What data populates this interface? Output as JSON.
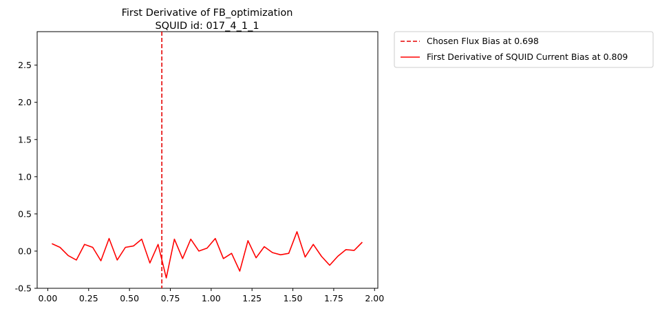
{
  "chart_data": {
    "type": "line",
    "title": "First Derivative of FB_optimization",
    "subtitle": "SQUID id: 017_4_1_1",
    "xlabel": "",
    "ylabel": "",
    "xlim": [
      -0.065,
      2.02
    ],
    "ylim": [
      -0.5,
      2.95
    ],
    "x_ticks": [
      "0.00",
      "0.25",
      "0.50",
      "0.75",
      "1.00",
      "1.25",
      "1.50",
      "1.75",
      "2.00"
    ],
    "y_ticks": [
      "-0.5",
      "0.0",
      "0.5",
      "1.0",
      "1.5",
      "2.0",
      "2.5"
    ],
    "grid": false,
    "legend_placement": "outside-top-right",
    "vline": {
      "name": "Chosen Flux Bias at 0.698",
      "x": 0.698,
      "color": "#e60000",
      "style": "dashed"
    },
    "series": [
      {
        "name": "First Derivative of SQUID Current Bias at 0.809",
        "color": "#ff0000",
        "x": [
          0.025,
          0.075,
          0.125,
          0.175,
          0.225,
          0.275,
          0.325,
          0.375,
          0.425,
          0.475,
          0.525,
          0.575,
          0.625,
          0.675,
          0.725,
          0.775,
          0.825,
          0.875,
          0.925,
          0.975,
          1.025,
          1.075,
          1.125,
          1.175,
          1.225,
          1.275,
          1.325,
          1.375,
          1.425,
          1.475,
          1.525,
          1.575,
          1.625,
          1.675,
          1.725,
          1.775,
          1.825,
          1.875,
          1.925
        ],
        "values": [
          0.1,
          0.05,
          -0.06,
          -0.12,
          0.09,
          0.05,
          -0.13,
          0.17,
          -0.12,
          0.05,
          0.07,
          0.16,
          -0.16,
          0.09,
          -0.36,
          0.16,
          -0.1,
          0.16,
          0.0,
          0.04,
          0.17,
          -0.1,
          -0.03,
          -0.27,
          0.14,
          -0.09,
          0.06,
          -0.02,
          -0.05,
          -0.03,
          0.26,
          -0.08,
          0.09,
          -0.07,
          -0.19,
          -0.07,
          0.02,
          0.01,
          0.12
        ]
      }
    ]
  }
}
